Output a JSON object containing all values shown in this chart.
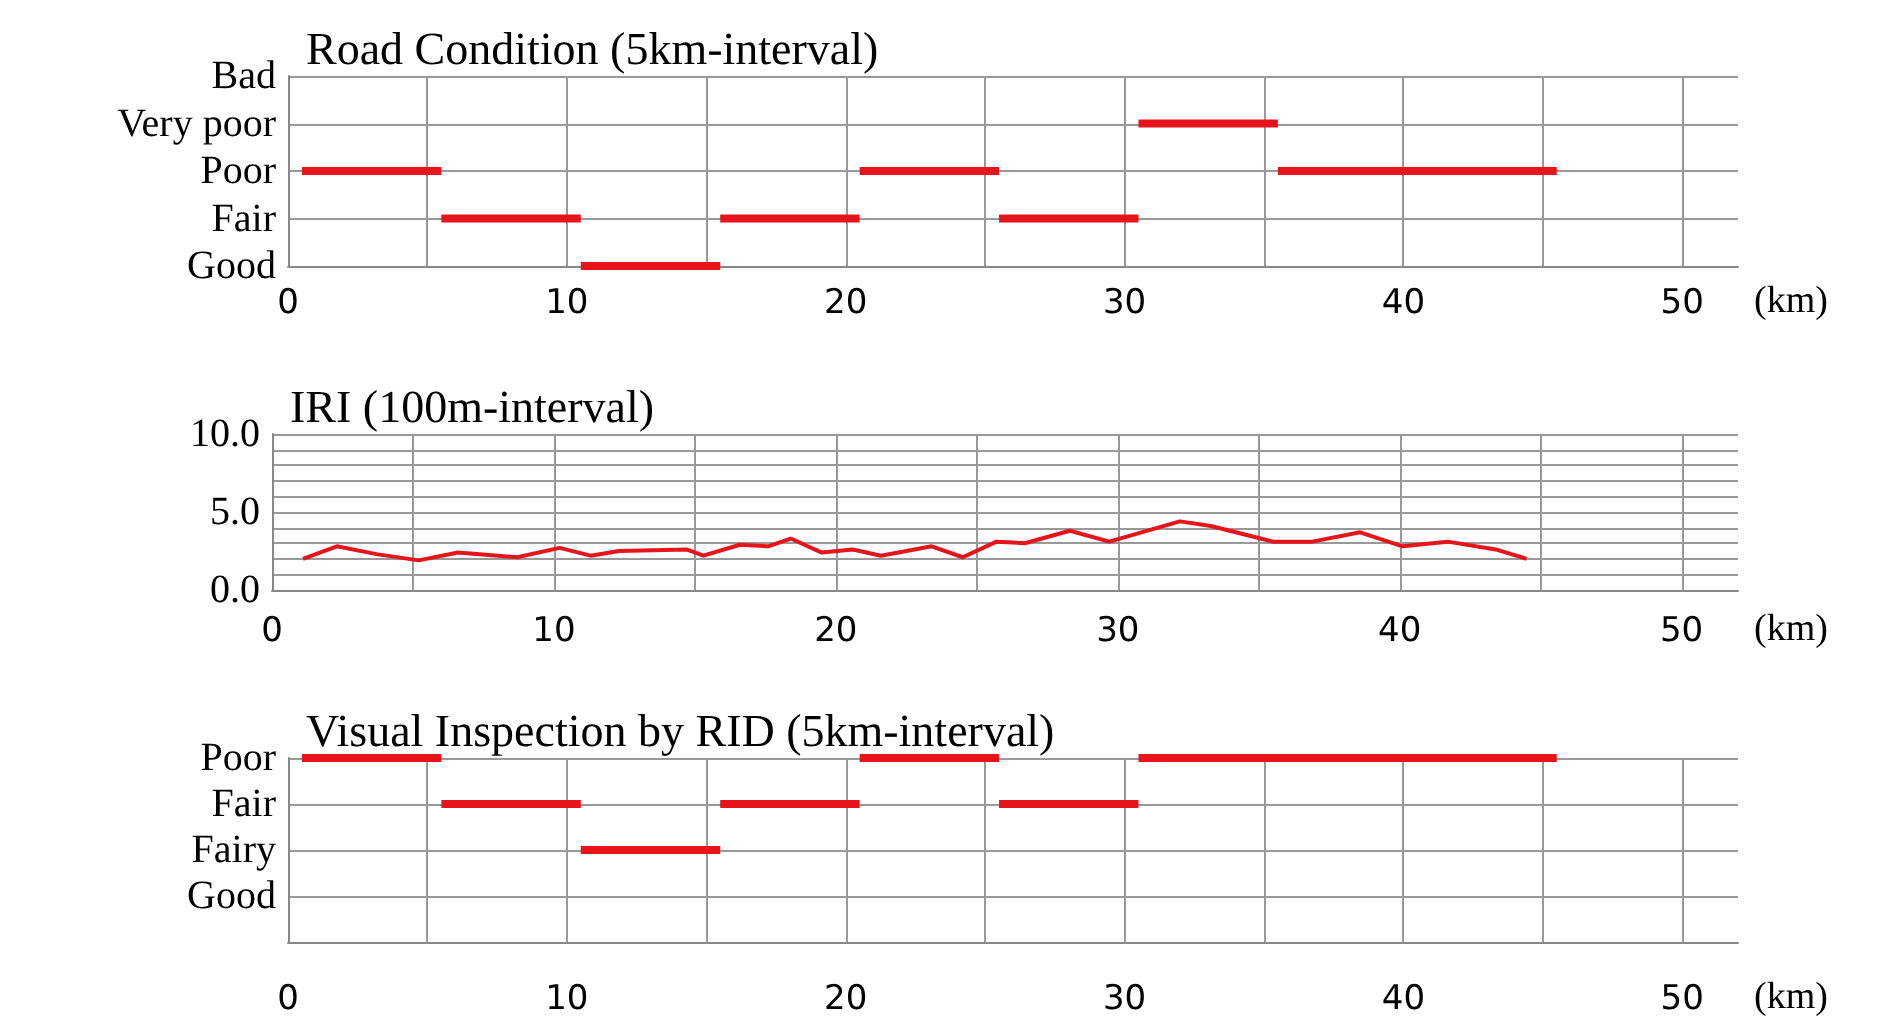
{
  "chart_data": [
    {
      "type": "bar",
      "orientation": "horizontal",
      "title": "Road Condition (5km-interval)",
      "xlabel": "(km)",
      "grid": true,
      "categories": [
        "Bad",
        "Very poor",
        "Poor",
        "Fair",
        "Good"
      ],
      "series": [
        {
          "color": "#e8141c",
          "base": [
            null,
            30.5,
            0.5,
            5.5,
            10.5
          ],
          "values": [
            null,
            5,
            5,
            5,
            5
          ]
        },
        {
          "color": "#e8141c",
          "base": [
            null,
            null,
            20.5,
            15.5,
            null
          ],
          "values": [
            null,
            null,
            5,
            5,
            null
          ]
        },
        {
          "color": "#e8141c",
          "base": [
            null,
            null,
            35.5,
            25.5,
            null
          ],
          "values": [
            null,
            null,
            10,
            5,
            null
          ]
        }
      ],
      "xlim": [
        0,
        52
      ],
      "xticks": [
        0,
        {
          "value": 5,
          "label": null
        },
        10,
        {
          "value": 15,
          "label": null
        },
        20,
        {
          "value": 25,
          "label": null
        },
        30,
        {
          "value": 35,
          "label": null
        },
        40,
        {
          "value": 45,
          "label": null
        },
        50
      ]
    },
    {
      "type": "line",
      "title": "IRI (100m-interval)",
      "xlabel": "(km)",
      "marker": "none",
      "grid": true,
      "series": [
        {
          "color": "#e8141c",
          "x": [
            1.1,
            2.3,
            3.7,
            5.2,
            6.6,
            8.7,
            10.2,
            11.3,
            12.3,
            14.7,
            15.3,
            16.6,
            17.6,
            18.4,
            19.5,
            20.6,
            21.6,
            23.4,
            24.5,
            25.7,
            26.7,
            28.3,
            29.7,
            32.2,
            33.3,
            35.5,
            36.9,
            38.6,
            40.1,
            41.7,
            43.4,
            44.5
          ],
          "values": [
            2.0,
            2.8,
            2.3,
            1.9,
            2.4,
            2.1,
            2.7,
            2.2,
            2.5,
            2.6,
            2.2,
            2.9,
            2.8,
            3.3,
            2.4,
            2.6,
            2.2,
            2.8,
            2.1,
            3.1,
            3.0,
            3.8,
            3.1,
            4.4,
            4.1,
            3.1,
            3.1,
            3.7,
            2.8,
            3.1,
            2.6,
            2.0
          ]
        }
      ],
      "xlim": [
        0,
        52
      ],
      "xticks": [
        0,
        {
          "value": 5,
          "label": null
        },
        10,
        {
          "value": 15,
          "label": null
        },
        20,
        {
          "value": 25,
          "label": null
        },
        30,
        {
          "value": 35,
          "label": null
        },
        40,
        {
          "value": 45,
          "label": null
        },
        50
      ],
      "ylim": [
        0,
        10
      ],
      "yticks": [
        {
          "value": 0,
          "label": "0.0"
        },
        {
          "value": 1,
          "label": null
        },
        {
          "value": 2,
          "label": null
        },
        {
          "value": 3,
          "label": null
        },
        {
          "value": 4,
          "label": null
        },
        {
          "value": 5,
          "label": "5.0"
        },
        {
          "value": 6,
          "label": null
        },
        {
          "value": 7,
          "label": null
        },
        {
          "value": 8,
          "label": null
        },
        {
          "value": 9,
          "label": null
        },
        {
          "value": 10,
          "label": "10.0"
        }
      ]
    },
    {
      "type": "bar",
      "orientation": "horizontal",
      "title": "Visual Inspection by RID (5km-interval)",
      "xlabel": "(km)",
      "grid": true,
      "categories": [
        "Poor",
        "Fair",
        "Fairy",
        "Good",
        null
      ],
      "series": [
        {
          "color": "#e8141c",
          "base": [
            0.5,
            5.5,
            10.5,
            null,
            null
          ],
          "values": [
            5,
            5,
            5,
            null,
            null
          ]
        },
        {
          "color": "#e8141c",
          "base": [
            20.5,
            15.5,
            null,
            null,
            null
          ],
          "values": [
            5,
            5,
            null,
            null,
            null
          ]
        },
        {
          "color": "#e8141c",
          "base": [
            30.5,
            25.5,
            null,
            null,
            null
          ],
          "values": [
            15,
            5,
            null,
            null,
            null
          ]
        }
      ],
      "xlim": [
        0,
        52
      ],
      "xticks": [
        0,
        {
          "value": 5,
          "label": null
        },
        10,
        {
          "value": 15,
          "label": null
        },
        20,
        {
          "value": 25,
          "label": null
        },
        30,
        {
          "value": 35,
          "label": null
        },
        40,
        {
          "value": 45,
          "label": null
        },
        50
      ]
    }
  ]
}
